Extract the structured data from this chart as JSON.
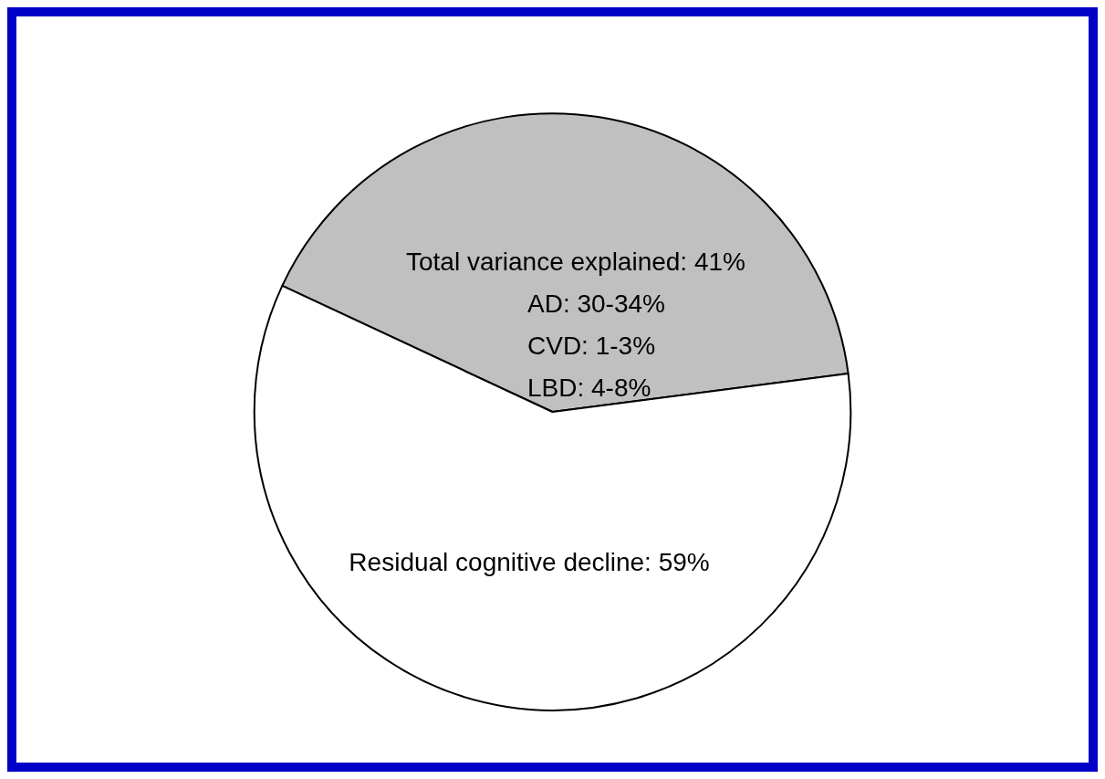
{
  "chart_data": {
    "type": "pie",
    "categories": [
      "Total variance explained",
      "Residual cognitive decline"
    ],
    "values": [
      41,
      59
    ],
    "colors": [
      "#c0c0c0",
      "#ffffff"
    ],
    "value_labels": [
      ": 41%",
      ": 59%"
    ],
    "annotations": [
      "AD: 30-34%",
      "CVD: 1-3%",
      "LBD: 4-8%"
    ]
  }
}
